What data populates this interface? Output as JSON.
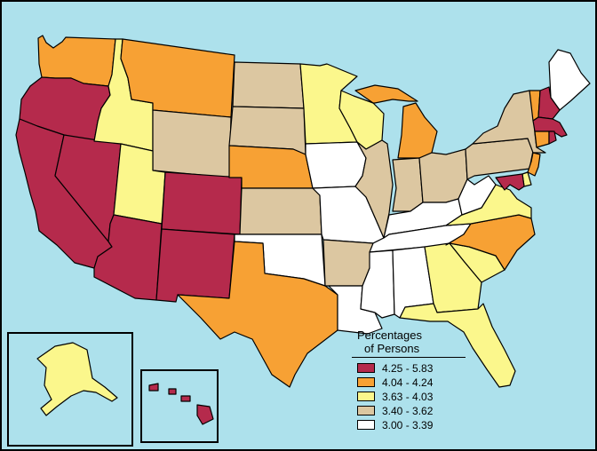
{
  "legend": {
    "title_line1": "Percentages",
    "title_line2": "of Persons",
    "classes": [
      {
        "label": "4.25 - 5.83",
        "color": "#b52a4c"
      },
      {
        "label": "4.04 - 4.24",
        "color": "#f7a134"
      },
      {
        "label": "3.63 - 4.03",
        "color": "#fbf78c"
      },
      {
        "label": "3.40 - 3.62",
        "color": "#dcc7a1"
      },
      {
        "label": "3.00 - 3.39",
        "color": "#ffffff"
      }
    ]
  },
  "colors": {
    "background": "#ade1ec",
    "border": "#000000"
  },
  "states": {
    "WA": {
      "class": 1
    },
    "OR": {
      "class": 0
    },
    "CA": {
      "class": 0
    },
    "NV": {
      "class": 0
    },
    "ID": {
      "class": 2
    },
    "MT": {
      "class": 1
    },
    "WY": {
      "class": 3
    },
    "UT": {
      "class": 2
    },
    "AZ": {
      "class": 0
    },
    "CO": {
      "class": 0
    },
    "NM": {
      "class": 0
    },
    "ND": {
      "class": 3
    },
    "SD": {
      "class": 3
    },
    "NE": {
      "class": 1
    },
    "KS": {
      "class": 3
    },
    "OK": {
      "class": 4
    },
    "TX": {
      "class": 1
    },
    "MN": {
      "class": 2
    },
    "IA": {
      "class": 4
    },
    "MO": {
      "class": 4
    },
    "AR": {
      "class": 3
    },
    "LA": {
      "class": 4
    },
    "WI": {
      "class": 2
    },
    "IL": {
      "class": 3
    },
    "MI": {
      "class": 1
    },
    "IN": {
      "class": 3
    },
    "OH": {
      "class": 3
    },
    "KY": {
      "class": 4
    },
    "TN": {
      "class": 4
    },
    "MS": {
      "class": 4
    },
    "AL": {
      "class": 4
    },
    "GA": {
      "class": 2
    },
    "FL": {
      "class": 2
    },
    "SC": {
      "class": 2
    },
    "NC": {
      "class": 1
    },
    "VA": {
      "class": 2
    },
    "WV": {
      "class": 4
    },
    "PA": {
      "class": 3
    },
    "NY": {
      "class": 3
    },
    "ME": {
      "class": 4
    },
    "VT": {
      "class": 1
    },
    "NH": {
      "class": 0
    },
    "MA": {
      "class": 0
    },
    "CT": {
      "class": 1
    },
    "RI": {
      "class": 0
    },
    "NJ": {
      "class": 1
    },
    "DE": {
      "class": 2
    },
    "MD": {
      "class": 0
    },
    "AK": {
      "class": 2
    },
    "HI": {
      "class": 0
    }
  }
}
